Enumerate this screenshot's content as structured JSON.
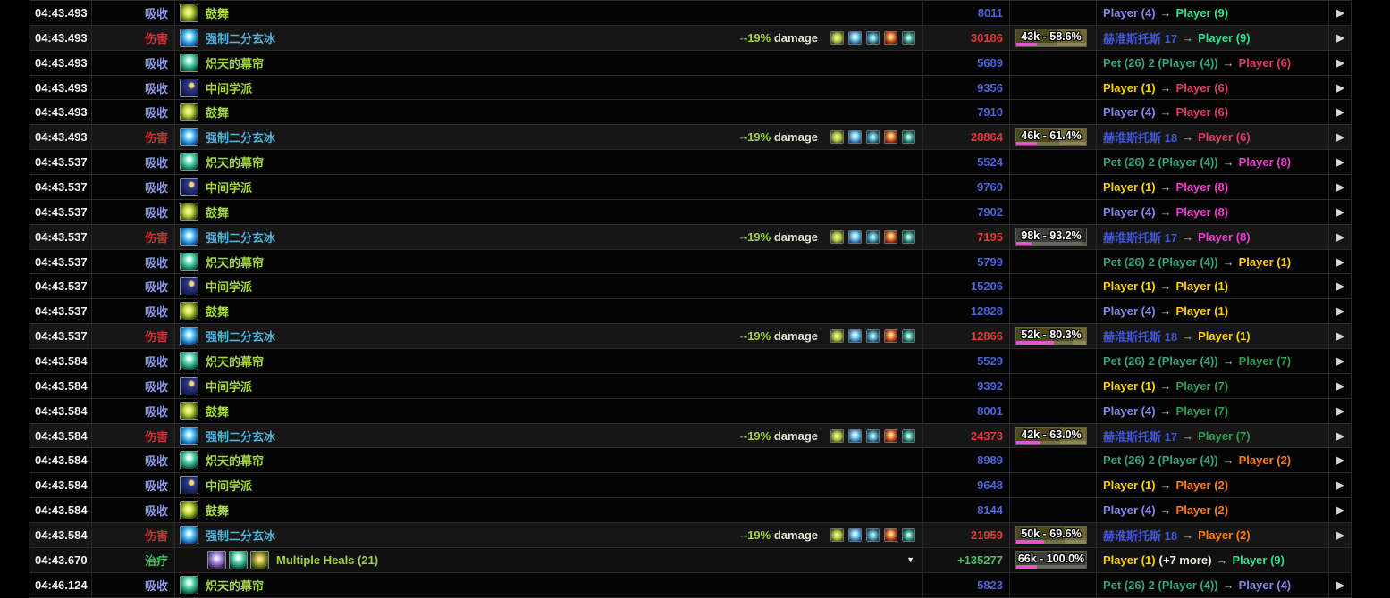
{
  "colors": {
    "absorb_label": "#8a97e6",
    "damage_label": "#c03536",
    "heal_label": "#3fc05f",
    "absorb_amount": "#4a63d9",
    "damage_amount": "#e23838",
    "heal_amount": "#43c55f",
    "spell_green": "#a3d53c",
    "spell_cyan": "#4fb3dc",
    "mod_dash": "#6b7a3c",
    "mod_pct": "#9ed43a",
    "mod_word": "#e4e4d2",
    "power_bar": "#e455d4",
    "actor": {
      "purple": "#8788ee",
      "yellow": "#ffd100",
      "orange": "#ff7d0a",
      "spring": "#2fe08f",
      "green": "#2f9e52",
      "crimson": "#dd3d66",
      "magenta": "#ee3fd0",
      "teal": "#33a383",
      "boss": "#4156d6",
      "plain": "#efeee2"
    }
  },
  "glyphs": {
    "to_arrow": "→",
    "expand_arrow": "▶",
    "collapse_caret": "▼"
  },
  "modifier": {
    "dash": "-",
    "pct": "-19%",
    "word": "damage",
    "buff_icons": [
      "mi-1",
      "mi-2",
      "mi-3",
      "mi-4",
      "mi-5"
    ]
  },
  "rows": [
    {
      "time": "04:43.493",
      "type": "absorb",
      "type_label": "吸收",
      "spell": {
        "icons": [
          "bolster"
        ],
        "name": "鼓舞",
        "color": "green"
      },
      "mod": false,
      "amount": "8011",
      "bar": null,
      "src": {
        "name": "Player (4)",
        "c": "purple"
      },
      "extra": null,
      "tgt": {
        "name": "Player (9)",
        "c": "spring"
      },
      "caret": false,
      "arrow": true
    },
    {
      "time": "04:43.493",
      "type": "damage",
      "type_label": "伤害",
      "spell": {
        "icons": [
          "bisect"
        ],
        "name": "强制二分玄冰",
        "color": "cyan"
      },
      "mod": true,
      "amount": "30186",
      "bar": {
        "label": "43k - 58.6%",
        "hp": 58.6,
        "power": 30,
        "kind": "olive"
      },
      "src": {
        "name": "赫淮斯托斯 17",
        "c": "boss"
      },
      "extra": null,
      "tgt": {
        "name": "Player (9)",
        "c": "spring"
      },
      "caret": false,
      "arrow": true
    },
    {
      "time": "04:43.493",
      "type": "absorb",
      "type_label": "吸收",
      "spell": {
        "icons": [
          "veil"
        ],
        "name": "炽天的幕帘",
        "color": "green"
      },
      "mod": false,
      "amount": "5689",
      "bar": null,
      "src": {
        "name": "Pet (26) 2 (Player (4))",
        "c": "teal"
      },
      "extra": null,
      "tgt": {
        "name": "Player (6)",
        "c": "crimson"
      },
      "caret": false,
      "arrow": true
    },
    {
      "time": "04:43.493",
      "type": "absorb",
      "type_label": "吸收",
      "spell": {
        "icons": [
          "median"
        ],
        "name": "中间学派",
        "color": "green"
      },
      "mod": false,
      "amount": "9356",
      "bar": null,
      "src": {
        "name": "Player (1)",
        "c": "yellow"
      },
      "extra": null,
      "tgt": {
        "name": "Player (6)",
        "c": "crimson"
      },
      "caret": false,
      "arrow": true
    },
    {
      "time": "04:43.493",
      "type": "absorb",
      "type_label": "吸收",
      "spell": {
        "icons": [
          "bolster"
        ],
        "name": "鼓舞",
        "color": "green"
      },
      "mod": false,
      "amount": "7910",
      "bar": null,
      "src": {
        "name": "Player (4)",
        "c": "purple"
      },
      "extra": null,
      "tgt": {
        "name": "Player (6)",
        "c": "crimson"
      },
      "caret": false,
      "arrow": true
    },
    {
      "time": "04:43.493",
      "type": "damage",
      "type_label": "伤害",
      "spell": {
        "icons": [
          "bisect"
        ],
        "name": "强制二分玄冰",
        "color": "cyan"
      },
      "mod": true,
      "amount": "28864",
      "bar": {
        "label": "46k - 61.4%",
        "hp": 61.4,
        "power": 30,
        "kind": "olive"
      },
      "src": {
        "name": "赫淮斯托斯 18",
        "c": "boss"
      },
      "extra": null,
      "tgt": {
        "name": "Player (6)",
        "c": "crimson"
      },
      "caret": false,
      "arrow": true
    },
    {
      "time": "04:43.537",
      "type": "absorb",
      "type_label": "吸收",
      "spell": {
        "icons": [
          "veil"
        ],
        "name": "炽天的幕帘",
        "color": "green"
      },
      "mod": false,
      "amount": "5524",
      "bar": null,
      "src": {
        "name": "Pet (26) 2 (Player (4))",
        "c": "teal"
      },
      "extra": null,
      "tgt": {
        "name": "Player (8)",
        "c": "magenta"
      },
      "caret": false,
      "arrow": true
    },
    {
      "time": "04:43.537",
      "type": "absorb",
      "type_label": "吸收",
      "spell": {
        "icons": [
          "median"
        ],
        "name": "中间学派",
        "color": "green"
      },
      "mod": false,
      "amount": "9760",
      "bar": null,
      "src": {
        "name": "Player (1)",
        "c": "yellow"
      },
      "extra": null,
      "tgt": {
        "name": "Player (8)",
        "c": "magenta"
      },
      "caret": false,
      "arrow": true
    },
    {
      "time": "04:43.537",
      "type": "absorb",
      "type_label": "吸收",
      "spell": {
        "icons": [
          "bolster"
        ],
        "name": "鼓舞",
        "color": "green"
      },
      "mod": false,
      "amount": "7902",
      "bar": null,
      "src": {
        "name": "Player (4)",
        "c": "purple"
      },
      "extra": null,
      "tgt": {
        "name": "Player (8)",
        "c": "magenta"
      },
      "caret": false,
      "arrow": true
    },
    {
      "time": "04:43.537",
      "type": "damage",
      "type_label": "伤害",
      "spell": {
        "icons": [
          "bisect"
        ],
        "name": "强制二分玄冰",
        "color": "cyan"
      },
      "mod": true,
      "amount": "7195",
      "bar": {
        "label": "98k - 93.2%",
        "hp": 93.2,
        "power": 22,
        "kind": "gray"
      },
      "src": {
        "name": "赫淮斯托斯 17",
        "c": "boss"
      },
      "extra": null,
      "tgt": {
        "name": "Player (8)",
        "c": "magenta"
      },
      "caret": false,
      "arrow": true
    },
    {
      "time": "04:43.537",
      "type": "absorb",
      "type_label": "吸收",
      "spell": {
        "icons": [
          "veil"
        ],
        "name": "炽天的幕帘",
        "color": "green"
      },
      "mod": false,
      "amount": "5799",
      "bar": null,
      "src": {
        "name": "Pet (26) 2 (Player (4))",
        "c": "teal"
      },
      "extra": null,
      "tgt": {
        "name": "Player (1)",
        "c": "yellow"
      },
      "caret": false,
      "arrow": true
    },
    {
      "time": "04:43.537",
      "type": "absorb",
      "type_label": "吸收",
      "spell": {
        "icons": [
          "median"
        ],
        "name": "中间学派",
        "color": "green"
      },
      "mod": false,
      "amount": "15206",
      "bar": null,
      "src": {
        "name": "Player (1)",
        "c": "yellow"
      },
      "extra": null,
      "tgt": {
        "name": "Player (1)",
        "c": "yellow"
      },
      "caret": false,
      "arrow": true
    },
    {
      "time": "04:43.537",
      "type": "absorb",
      "type_label": "吸收",
      "spell": {
        "icons": [
          "bolster"
        ],
        "name": "鼓舞",
        "color": "green"
      },
      "mod": false,
      "amount": "12828",
      "bar": null,
      "src": {
        "name": "Player (4)",
        "c": "purple"
      },
      "extra": null,
      "tgt": {
        "name": "Player (1)",
        "c": "yellow"
      },
      "caret": false,
      "arrow": true
    },
    {
      "time": "04:43.537",
      "type": "damage",
      "type_label": "伤害",
      "spell": {
        "icons": [
          "bisect"
        ],
        "name": "强制二分玄冰",
        "color": "cyan"
      },
      "mod": true,
      "amount": "12866",
      "bar": {
        "label": "52k - 80.3%",
        "hp": 80.3,
        "power": 54,
        "kind": "olive"
      },
      "src": {
        "name": "赫淮斯托斯 18",
        "c": "boss"
      },
      "extra": null,
      "tgt": {
        "name": "Player (1)",
        "c": "yellow"
      },
      "caret": false,
      "arrow": true
    },
    {
      "time": "04:43.584",
      "type": "absorb",
      "type_label": "吸收",
      "spell": {
        "icons": [
          "veil"
        ],
        "name": "炽天的幕帘",
        "color": "green"
      },
      "mod": false,
      "amount": "5529",
      "bar": null,
      "src": {
        "name": "Pet (26) 2 (Player (4))",
        "c": "teal"
      },
      "extra": null,
      "tgt": {
        "name": "Player (7)",
        "c": "green"
      },
      "caret": false,
      "arrow": true
    },
    {
      "time": "04:43.584",
      "type": "absorb",
      "type_label": "吸收",
      "spell": {
        "icons": [
          "median"
        ],
        "name": "中间学派",
        "color": "green"
      },
      "mod": false,
      "amount": "9392",
      "bar": null,
      "src": {
        "name": "Player (1)",
        "c": "yellow"
      },
      "extra": null,
      "tgt": {
        "name": "Player (7)",
        "c": "green"
      },
      "caret": false,
      "arrow": true
    },
    {
      "time": "04:43.584",
      "type": "absorb",
      "type_label": "吸收",
      "spell": {
        "icons": [
          "bolster"
        ],
        "name": "鼓舞",
        "color": "green"
      },
      "mod": false,
      "amount": "8001",
      "bar": null,
      "src": {
        "name": "Player (4)",
        "c": "purple"
      },
      "extra": null,
      "tgt": {
        "name": "Player (7)",
        "c": "green"
      },
      "caret": false,
      "arrow": true
    },
    {
      "time": "04:43.584",
      "type": "damage",
      "type_label": "伤害",
      "spell": {
        "icons": [
          "bisect"
        ],
        "name": "强制二分玄冰",
        "color": "cyan"
      },
      "mod": true,
      "amount": "24373",
      "bar": {
        "label": "42k - 63.0%",
        "hp": 63.0,
        "power": 34,
        "kind": "olive"
      },
      "src": {
        "name": "赫淮斯托斯 17",
        "c": "boss"
      },
      "extra": null,
      "tgt": {
        "name": "Player (7)",
        "c": "green"
      },
      "caret": false,
      "arrow": true
    },
    {
      "time": "04:43.584",
      "type": "absorb",
      "type_label": "吸收",
      "spell": {
        "icons": [
          "veil"
        ],
        "name": "炽天的幕帘",
        "color": "green"
      },
      "mod": false,
      "amount": "8989",
      "bar": null,
      "src": {
        "name": "Pet (26) 2 (Player (4))",
        "c": "teal"
      },
      "extra": null,
      "tgt": {
        "name": "Player (2)",
        "c": "orange"
      },
      "caret": false,
      "arrow": true
    },
    {
      "time": "04:43.584",
      "type": "absorb",
      "type_label": "吸收",
      "spell": {
        "icons": [
          "median"
        ],
        "name": "中间学派",
        "color": "green"
      },
      "mod": false,
      "amount": "9648",
      "bar": null,
      "src": {
        "name": "Player (1)",
        "c": "yellow"
      },
      "extra": null,
      "tgt": {
        "name": "Player (2)",
        "c": "orange"
      },
      "caret": false,
      "arrow": true
    },
    {
      "time": "04:43.584",
      "type": "absorb",
      "type_label": "吸收",
      "spell": {
        "icons": [
          "bolster"
        ],
        "name": "鼓舞",
        "color": "green"
      },
      "mod": false,
      "amount": "8144",
      "bar": null,
      "src": {
        "name": "Player (4)",
        "c": "purple"
      },
      "extra": null,
      "tgt": {
        "name": "Player (2)",
        "c": "orange"
      },
      "caret": false,
      "arrow": true
    },
    {
      "time": "04:43.584",
      "type": "damage",
      "type_label": "伤害",
      "spell": {
        "icons": [
          "bisect"
        ],
        "name": "强制二分玄冰",
        "color": "cyan"
      },
      "mod": true,
      "amount": "21959",
      "bar": {
        "label": "50k - 69.6%",
        "hp": 69.6,
        "power": 40,
        "kind": "olive"
      },
      "src": {
        "name": "赫淮斯托斯 18",
        "c": "boss"
      },
      "extra": null,
      "tgt": {
        "name": "Player (2)",
        "c": "orange"
      },
      "caret": false,
      "arrow": true
    },
    {
      "time": "04:43.670",
      "type": "heal",
      "type_label": "治疗",
      "spell": {
        "icons": [
          "priest",
          "veil",
          "crown"
        ],
        "name": "Multiple Heals (21)",
        "color": "green",
        "indent": true
      },
      "mod": false,
      "amount": "+135277",
      "bar": {
        "label": "66k - 100.0%",
        "hp": 100,
        "power": 30,
        "kind": "gray"
      },
      "src": {
        "name": "Player (1)",
        "c": "yellow"
      },
      "extra": "(+7 more)",
      "tgt": {
        "name": "Player (9)",
        "c": "spring"
      },
      "caret": true,
      "arrow": false
    },
    {
      "time": "04:46.124",
      "type": "absorb",
      "type_label": "吸收",
      "spell": {
        "icons": [
          "veil"
        ],
        "name": "炽天的幕帘",
        "color": "green"
      },
      "mod": false,
      "amount": "5823",
      "bar": null,
      "src": {
        "name": "Pet (26) 2 (Player (4))",
        "c": "teal"
      },
      "extra": null,
      "tgt": {
        "name": "Player (4)",
        "c": "purple"
      },
      "caret": false,
      "arrow": true
    }
  ]
}
